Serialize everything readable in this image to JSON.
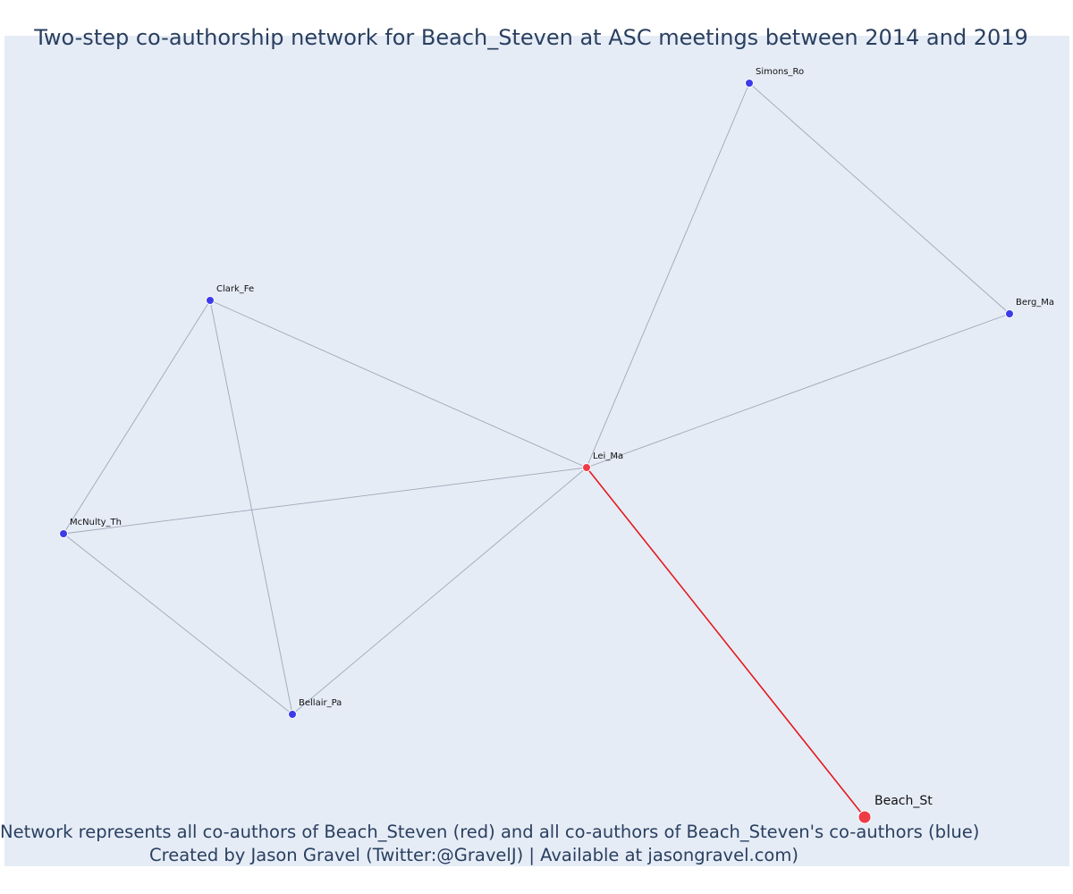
{
  "title": "Two-step co-authorship network for Beach_Steven at ASC meetings between 2014 and 2019",
  "annotation": {
    "line1": "Network represents all co-authors of Beach_Steven (red) and all co-authors of Beach_Steven's co-authors (blue)",
    "line2": "Created by Jason Gravel (Twitter:@GravelJ) | Available at jasongravel.com)"
  },
  "colors": {
    "background": "#e5ecf6",
    "edge": "#a0a7b8",
    "ego_edge": "#e31a1c",
    "ego_node": "#ef3b45",
    "coauthor_node": "#3b3bea",
    "second_node": "#3b3bea",
    "text": "#2a3f5f"
  },
  "nodes": [
    {
      "id": "Beach_St",
      "label": "Beach_St",
      "role": "ego"
    },
    {
      "id": "Lei_Ma",
      "label": "Lei_Ma",
      "role": "coauthor"
    },
    {
      "id": "Simons_Ro",
      "label": "Simons_Ro",
      "role": "second"
    },
    {
      "id": "Berg_Ma",
      "label": "Berg_Ma",
      "role": "second"
    },
    {
      "id": "Clark_Fe",
      "label": "Clark_Fe",
      "role": "second"
    },
    {
      "id": "McNulty_Th",
      "label": "McNulty_Th",
      "role": "second"
    },
    {
      "id": "Bellair_Pa",
      "label": "Bellair_Pa",
      "role": "second"
    }
  ],
  "edges": [
    {
      "source": "Beach_St",
      "target": "Lei_Ma",
      "ego": true
    },
    {
      "source": "Lei_Ma",
      "target": "Simons_Ro",
      "ego": false
    },
    {
      "source": "Lei_Ma",
      "target": "Berg_Ma",
      "ego": false
    },
    {
      "source": "Simons_Ro",
      "target": "Berg_Ma",
      "ego": false
    },
    {
      "source": "Lei_Ma",
      "target": "Clark_Fe",
      "ego": false
    },
    {
      "source": "Lei_Ma",
      "target": "McNulty_Th",
      "ego": false
    },
    {
      "source": "Lei_Ma",
      "target": "Bellair_Pa",
      "ego": false
    },
    {
      "source": "Clark_Fe",
      "target": "McNulty_Th",
      "ego": false
    },
    {
      "source": "Clark_Fe",
      "target": "Bellair_Pa",
      "ego": false
    },
    {
      "source": "McNulty_Th",
      "target": "Bellair_Pa",
      "ego": false
    }
  ]
}
